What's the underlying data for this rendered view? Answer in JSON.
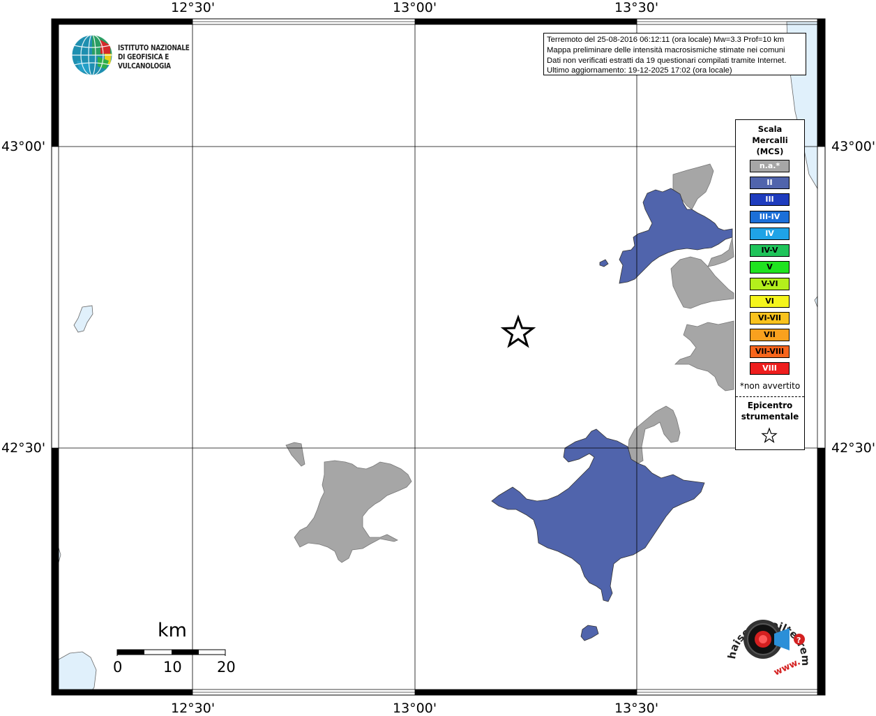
{
  "axes": {
    "top_labels": [
      "12°30'",
      "13°00'",
      "13°30'"
    ],
    "bottom_labels": [
      "12°30'",
      "13°00'",
      "13°30'"
    ],
    "left_labels": [
      "43°00'",
      "42°30'"
    ],
    "right_labels": [
      "43°00'",
      "42°30'"
    ]
  },
  "logo": {
    "line1": "ISTITUTO NAZIONALE",
    "line2": "DI GEOFISICA E VULCANOLOGIA"
  },
  "info": {
    "line1": "Terremoto del 25-08-2016 06:12:11 (ora locale) Mw=3.3 Prof=10 km",
    "line2": "Mappa preliminare delle intensità macrosismiche stimate nei comuni",
    "line3": "Dati non verificati estratti da 19 questionari compilati tramite Internet.",
    "line4": "Ultimo aggiornamento: 19-12-2025 17:02 (ora locale)"
  },
  "legend": {
    "title_line1": "Scala",
    "title_line2": "Mercalli",
    "title_line3": "(MCS)",
    "items": [
      {
        "label": "n.a.*",
        "color": "#a6a6a6",
        "text_color": "#ffffff"
      },
      {
        "label": "II",
        "color": "#5064ac",
        "text_color": "#ffffff"
      },
      {
        "label": "III",
        "color": "#1e3cbe",
        "text_color": "#ffffff"
      },
      {
        "label": "III-IV",
        "color": "#1b6fd8",
        "text_color": "#ffffff"
      },
      {
        "label": "IV",
        "color": "#1fa3e6",
        "text_color": "#ffffff"
      },
      {
        "label": "IV-V",
        "color": "#1fc45a",
        "text_color": "#000000"
      },
      {
        "label": "V",
        "color": "#1fe31f",
        "text_color": "#000000"
      },
      {
        "label": "V-VI",
        "color": "#b4ef1c",
        "text_color": "#000000"
      },
      {
        "label": "VI",
        "color": "#f5f51c",
        "text_color": "#000000"
      },
      {
        "label": "VI-VII",
        "color": "#f9c21e",
        "text_color": "#000000"
      },
      {
        "label": "VII",
        "color": "#f9a11e",
        "text_color": "#000000"
      },
      {
        "label": "VII-VIII",
        "color": "#f7651c",
        "text_color": "#000000"
      },
      {
        "label": "VIII",
        "color": "#ee1e1e",
        "text_color": "#ffffff"
      }
    ],
    "note": "*non avvertito",
    "epicenter_line1": "Epicentro",
    "epicenter_line2": "strumentale"
  },
  "scalebar": {
    "unit": "km",
    "ticks": [
      "0",
      "10",
      "20"
    ]
  },
  "colors": {
    "grey_area": "#a6a6a6",
    "intensity_II": "#5064ac",
    "water": "#e0f0fb"
  }
}
